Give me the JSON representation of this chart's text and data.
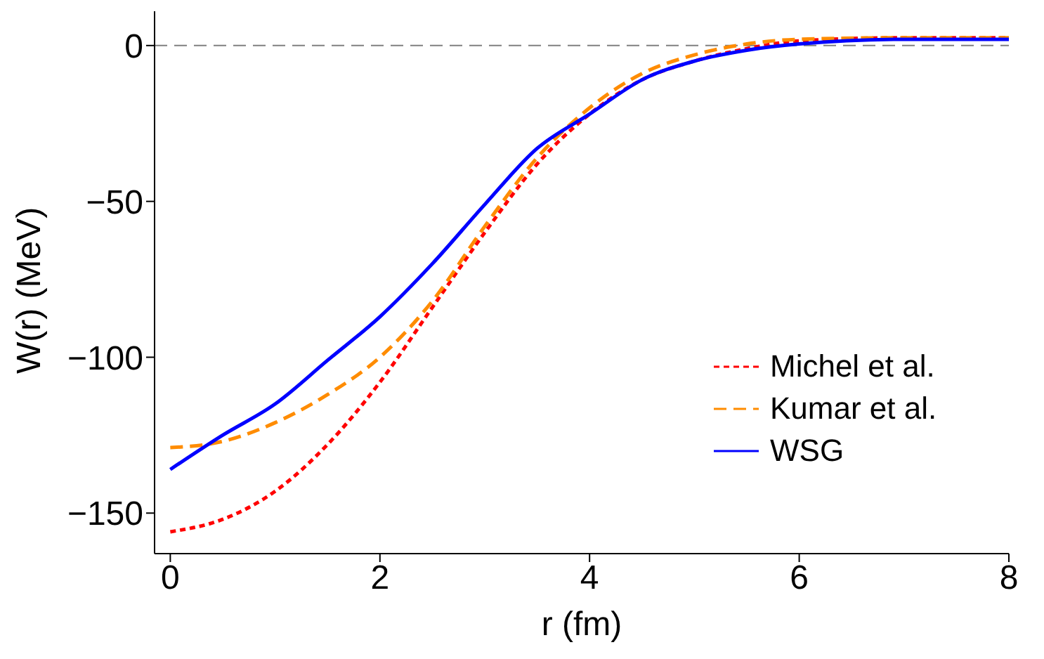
{
  "chart_data": {
    "type": "line",
    "xlabel": "r (fm)",
    "ylabel": "W(r) (MeV)",
    "xlim": [
      -0.15,
      8
    ],
    "ylim": [
      -163,
      11
    ],
    "xticks": [
      0,
      2,
      4,
      6,
      8
    ],
    "yticks": [
      -150,
      -100,
      -50,
      0
    ],
    "grid": false,
    "legend": "right",
    "marker": "none",
    "x": [
      0,
      0.5,
      1,
      1.5,
      2,
      2.5,
      3,
      3.5,
      4,
      4.5,
      5,
      5.5,
      6,
      7,
      8
    ],
    "series": [
      {
        "name": "Michel et al.",
        "color": "#ff0000",
        "line_style": "dotted",
        "values": [
          -156,
          -152,
          -143,
          -128,
          -108,
          -84,
          -60,
          -38,
          -22,
          -11,
          -5,
          -1,
          1.5,
          2.5,
          2.5
        ]
      },
      {
        "name": "Kumar et al.",
        "color": "#ff8c00",
        "line_style": "dashed",
        "values": [
          -129,
          -127,
          -121,
          -112,
          -100,
          -82,
          -58,
          -36,
          -20,
          -9,
          -3,
          0.5,
          2,
          2.5,
          2.5
        ]
      },
      {
        "name": "WSG",
        "color": "#0000ff",
        "line_style": "solid",
        "values": [
          -136,
          -125,
          -115,
          -101,
          -87,
          -70,
          -51,
          -33,
          -22,
          -11,
          -5,
          -1.5,
          0.5,
          2,
          2
        ]
      }
    ],
    "ref_lines": [
      {
        "axis": "y",
        "value": 0,
        "color": "#808080",
        "line_style": "dashed"
      }
    ]
  }
}
